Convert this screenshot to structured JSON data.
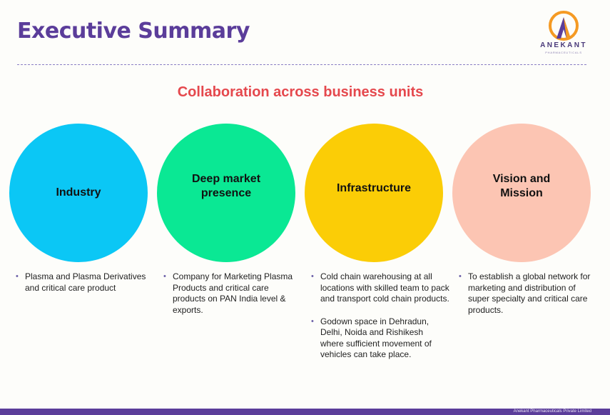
{
  "header": {
    "title": "Executive Summary",
    "logo_name": "ANEKANT",
    "logo_tagline": "PHARMACEUTICALS"
  },
  "subtitle": "Collaboration across business units",
  "units": [
    {
      "name": "Industry",
      "color": "#0bc7f5",
      "bullets": [
        "Plasma and Plasma Derivatives and critical care product"
      ]
    },
    {
      "name": "Deep market presence",
      "color": "#0ae894",
      "bullets": [
        "Company for Marketing Plasma Products and critical care products on PAN India level & exports."
      ]
    },
    {
      "name": "Infrastructure",
      "color": "#fbcd06",
      "bullets": [
        "Cold chain warehousing at all locations with skilled team to pack and transport cold chain products.",
        "Godown space in Dehradun, Delhi, Noida and Rishikesh where sufficient movement of vehicles can take place."
      ]
    },
    {
      "name": "Vision and Mission",
      "color": "#fcc5b3",
      "bullets": [
        "To establish a global network for marketing and distribution of super specialty and critical care products."
      ]
    }
  ],
  "footer": {
    "company": "Anekant Pharmaceuticals Private Limited"
  },
  "colors": {
    "title": "#5b3d9a",
    "subtitle": "#e5484d",
    "logo_orange": "#f59a23",
    "footer_bar": "#5b3d9a"
  }
}
